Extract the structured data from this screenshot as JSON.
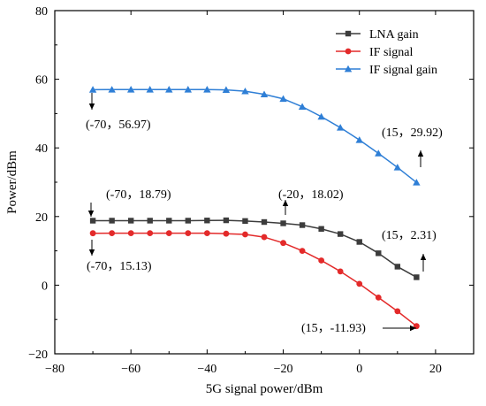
{
  "chart_data": {
    "type": "line",
    "xlabel": "5G signal power/dBm",
    "ylabel": "Power/dBm",
    "xlim": [
      -80,
      30
    ],
    "ylim": [
      -20,
      80
    ],
    "xticks": [
      -80,
      -60,
      -40,
      -20,
      0,
      20
    ],
    "yticks": [
      -20,
      0,
      20,
      40,
      60,
      80
    ],
    "grid": false,
    "legend_position": "top-right",
    "x": [
      -70,
      -65,
      -60,
      -55,
      -50,
      -45,
      -40,
      -35,
      -30,
      -25,
      -20,
      -15,
      -10,
      -5,
      0,
      5,
      10,
      15
    ],
    "series": [
      {
        "name": "LNA gain",
        "color": "#3c3c3c",
        "marker": "square",
        "values": [
          18.79,
          18.8,
          18.8,
          18.8,
          18.8,
          18.8,
          18.85,
          18.9,
          18.7,
          18.4,
          18.02,
          17.5,
          16.4,
          14.9,
          12.6,
          9.3,
          5.4,
          2.31
        ]
      },
      {
        "name": "IF signal",
        "color": "#e32a2a",
        "marker": "circle",
        "values": [
          15.13,
          15.15,
          15.15,
          15.15,
          15.15,
          15.15,
          15.15,
          15.0,
          14.8,
          14.0,
          12.3,
          10.0,
          7.2,
          4.0,
          0.4,
          -3.6,
          -7.6,
          -11.93
        ]
      },
      {
        "name": "IF signal gain",
        "color": "#2f7fd6",
        "marker": "triangle",
        "values": [
          56.97,
          56.99,
          57.0,
          57.0,
          57.0,
          57.0,
          57.0,
          56.9,
          56.5,
          55.6,
          54.3,
          52.0,
          49.1,
          45.9,
          42.3,
          38.4,
          34.3,
          29.92
        ]
      }
    ],
    "annotations": [
      {
        "text": "(-70，56.97)"
      },
      {
        "text": "(15，29.92)"
      },
      {
        "text": "(-70，18.79)"
      },
      {
        "text": "(-20，18.02)"
      },
      {
        "text": "(15，2.31)"
      },
      {
        "text": "(-70，15.13)"
      },
      {
        "text": "(15，-11.93)"
      }
    ]
  }
}
